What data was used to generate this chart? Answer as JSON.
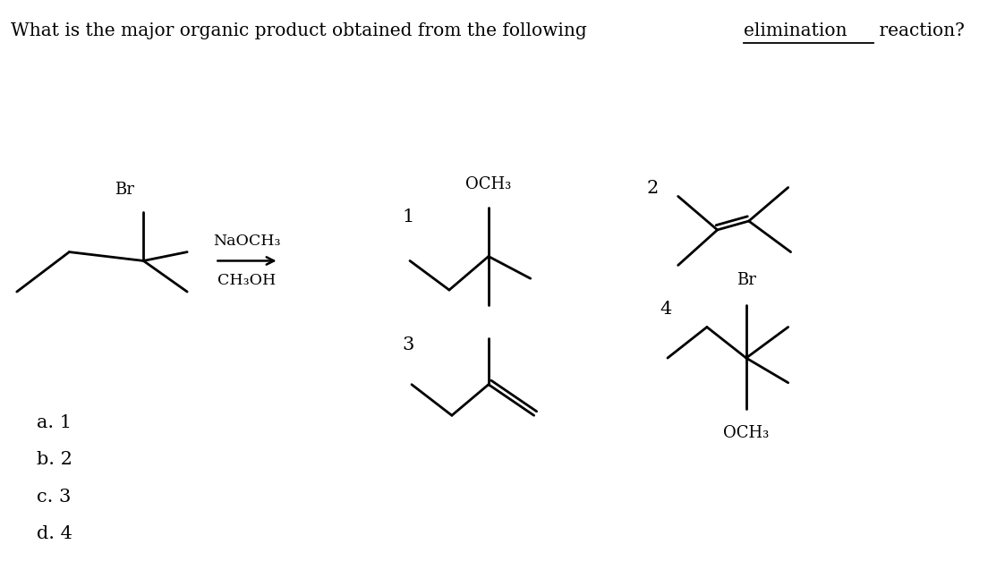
{
  "background_color": "#ffffff",
  "text_color": "#000000",
  "title_part1": "What is the major organic product obtained from the following ",
  "title_underline": "elimination",
  "title_part2": " reaction?",
  "answer_choices": [
    "a. 1",
    "b. 2",
    "c. 3",
    "d. 4"
  ],
  "reagent_line1": "NaOCH₃",
  "reagent_line2": "CH₃OH",
  "label_reactant_br": "Br",
  "label1_num": "1",
  "label2_num": "2",
  "label3_num": "3",
  "label4_num": "4",
  "label1_sub": "OCH₃",
  "label4_sub_top": "Br",
  "label4_sub_bot": "OCH₃"
}
